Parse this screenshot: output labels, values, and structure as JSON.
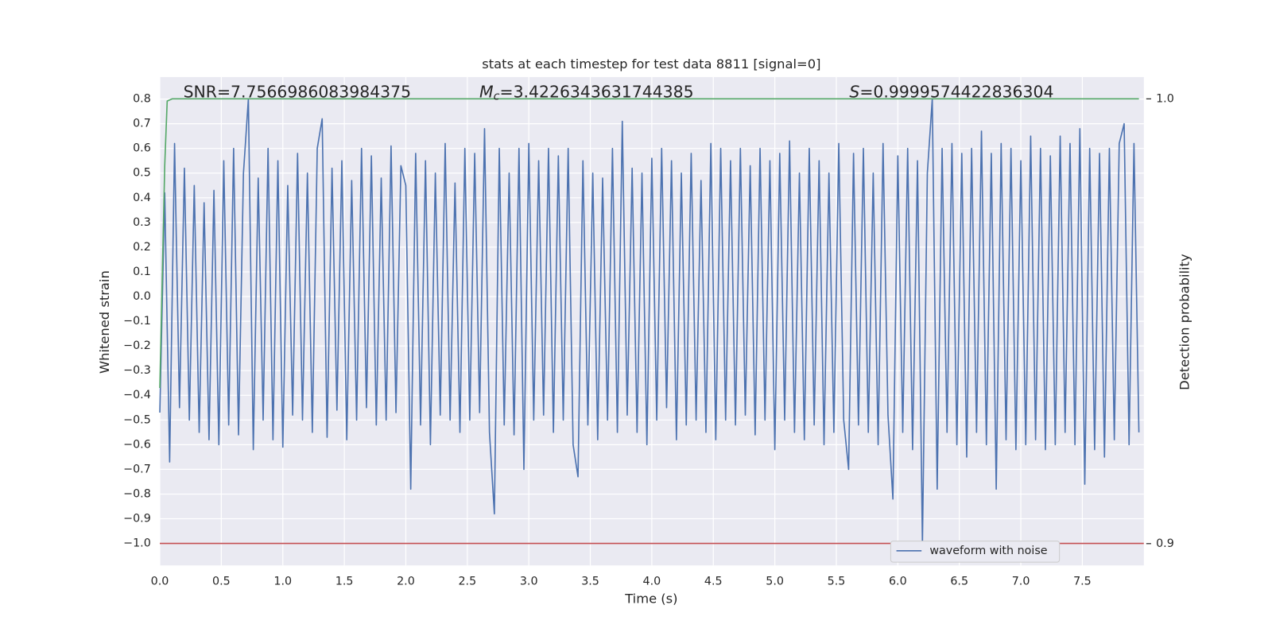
{
  "chart_data": {
    "type": "line",
    "title": "stats at each timestep for test data 8811 [signal=0]",
    "xlabel": "Time (s)",
    "ylabel": "Whitened strain",
    "y2label": "Detection probability",
    "annotations": [
      {
        "text": "SNR=7.7566986083984375"
      },
      {
        "symbol": "M",
        "subscript": "c",
        "text": "=3.4226343631744385"
      },
      {
        "symbol": "S",
        "text": "=0.9999574422836304"
      }
    ],
    "xlim": [
      0,
      8.0
    ],
    "ylim": [
      -1.089,
      0.889
    ],
    "y2lim": [
      0.8951,
      1.0049
    ],
    "xticks": [
      {
        "value": 0,
        "label": "0.0"
      },
      0.5,
      {
        "value": 1,
        "label": "1.0"
      },
      1.5,
      {
        "value": 2,
        "label": "2.0"
      },
      2.5,
      {
        "value": 3,
        "label": "3.0"
      },
      3.5,
      {
        "value": 4,
        "label": "4.0"
      },
      4.5,
      {
        "value": 5,
        "label": "5.0"
      },
      5.5,
      {
        "value": 6,
        "label": "6.0"
      },
      6.5,
      {
        "value": 7,
        "label": "7.0"
      },
      7.5
    ],
    "yticks": [
      0.8,
      0.7,
      0.6,
      0.5,
      0.4,
      0.3,
      0.2,
      0.1,
      {
        "value": 0,
        "label": "0.0"
      },
      {
        "value": -0.1,
        "label": "−0.1"
      },
      {
        "value": -0.2,
        "label": "−0.2"
      },
      {
        "value": -0.3,
        "label": "−0.3"
      },
      {
        "value": -0.4,
        "label": "−0.4"
      },
      {
        "value": -0.5,
        "label": "−0.5"
      },
      {
        "value": -0.6,
        "label": "−0.6"
      },
      {
        "value": -0.7,
        "label": "−0.7"
      },
      {
        "value": -0.8,
        "label": "−0.8"
      },
      {
        "value": -0.9,
        "label": "−0.9"
      },
      {
        "value": -1,
        "label": "−1.0"
      }
    ],
    "y2ticks": [
      {
        "value": 1,
        "label": "1.0"
      },
      0.9
    ],
    "grid": true,
    "legend": "lower right",
    "hlines": [
      {
        "y": -1,
        "color": "#c44e52"
      }
    ],
    "series": [
      {
        "name": "waveform with noise",
        "color": "#4c72b0",
        "x": [
          0,
          0.04,
          0.08,
          0.12,
          0.16,
          0.2,
          0.24,
          0.28,
          0.32,
          0.36,
          0.4,
          0.44,
          0.48,
          0.52,
          0.56,
          0.6,
          0.64,
          0.68,
          0.72,
          0.76,
          0.8,
          0.84,
          0.88,
          0.92,
          0.96,
          1,
          1.04,
          1.08,
          1.12,
          1.16,
          1.2,
          1.24,
          1.28,
          1.32,
          1.36,
          1.4,
          1.44,
          1.48,
          1.52,
          1.56,
          1.6,
          1.64,
          1.68,
          1.72,
          1.76,
          1.8,
          1.84,
          1.88,
          1.92,
          1.96,
          2,
          2.04,
          2.08,
          2.12,
          2.16,
          2.2,
          2.24,
          2.28,
          2.32,
          2.36,
          2.4,
          2.44,
          2.48,
          2.52,
          2.56,
          2.6,
          2.64,
          2.68,
          2.72,
          2.76,
          2.8,
          2.84,
          2.88,
          2.92,
          2.96,
          3,
          3.04,
          3.08,
          3.12,
          3.16,
          3.2,
          3.24,
          3.28,
          3.32,
          3.36,
          3.4,
          3.44,
          3.48,
          3.52,
          3.56,
          3.6,
          3.64,
          3.68,
          3.72,
          3.76,
          3.8,
          3.84,
          3.88,
          3.92,
          3.96,
          4,
          4.04,
          4.08,
          4.12,
          4.16,
          4.2,
          4.24,
          4.28,
          4.32,
          4.36,
          4.4,
          4.44,
          4.48,
          4.52,
          4.56,
          4.6,
          4.64,
          4.68,
          4.72,
          4.76,
          4.8,
          4.84,
          4.88,
          4.92,
          4.96,
          5,
          5.04,
          5.08,
          5.12,
          5.16,
          5.2,
          5.24,
          5.28,
          5.32,
          5.36,
          5.4,
          5.44,
          5.48,
          5.52,
          5.56,
          5.6,
          5.64,
          5.68,
          5.72,
          5.76,
          5.8,
          5.84,
          5.88,
          5.92,
          5.96,
          6,
          6.04,
          6.08,
          6.12,
          6.16,
          6.2,
          6.24,
          6.28,
          6.32,
          6.36,
          6.4,
          6.44,
          6.48,
          6.52,
          6.56,
          6.6,
          6.64,
          6.68,
          6.72,
          6.76,
          6.8,
          6.84,
          6.88,
          6.92,
          6.96,
          7,
          7.04,
          7.08,
          7.12,
          7.16,
          7.2,
          7.24,
          7.28,
          7.32,
          7.36,
          7.4,
          7.44,
          7.48,
          7.52,
          7.56,
          7.6,
          7.64,
          7.68,
          7.72,
          7.76,
          7.8,
          7.84,
          7.88,
          7.92,
          7.96
        ],
        "values": [
          -0.47,
          0.42,
          -0.67,
          0.62,
          -0.45,
          0.52,
          -0.5,
          0.45,
          -0.55,
          0.38,
          -0.58,
          0.43,
          -0.6,
          0.55,
          -0.52,
          0.6,
          -0.56,
          0.5,
          0.8,
          -0.62,
          0.48,
          -0.5,
          0.6,
          -0.58,
          0.55,
          -0.61,
          0.45,
          -0.48,
          0.58,
          -0.5,
          0.5,
          -0.55,
          0.6,
          0.72,
          -0.57,
          0.52,
          -0.46,
          0.55,
          -0.58,
          0.47,
          -0.5,
          0.6,
          -0.45,
          0.57,
          -0.52,
          0.48,
          -0.5,
          0.61,
          -0.47,
          0.53,
          0.45,
          -0.78,
          0.58,
          -0.52,
          0.55,
          -0.6,
          0.5,
          -0.48,
          0.62,
          -0.5,
          0.46,
          -0.55,
          0.6,
          -0.5,
          0.58,
          -0.47,
          0.68,
          -0.55,
          -0.88,
          0.6,
          -0.52,
          0.5,
          -0.56,
          0.6,
          -0.7,
          0.62,
          -0.5,
          0.55,
          -0.48,
          0.6,
          -0.55,
          0.57,
          -0.5,
          0.6,
          -0.6,
          -0.73,
          0.55,
          -0.52,
          0.5,
          -0.58,
          0.48,
          -0.5,
          0.6,
          -0.55,
          0.71,
          -0.48,
          0.52,
          -0.55,
          0.5,
          -0.6,
          0.56,
          -0.5,
          0.6,
          -0.45,
          0.55,
          -0.58,
          0.5,
          -0.52,
          0.58,
          -0.5,
          0.47,
          -0.55,
          0.62,
          -0.58,
          0.6,
          -0.5,
          0.55,
          -0.52,
          0.6,
          -0.48,
          0.53,
          -0.56,
          0.6,
          -0.5,
          0.55,
          -0.62,
          0.58,
          -0.5,
          0.63,
          -0.55,
          0.5,
          -0.58,
          0.6,
          -0.52,
          0.55,
          -0.6,
          0.5,
          -0.55,
          0.62,
          -0.5,
          -0.7,
          0.58,
          -0.52,
          0.6,
          -0.55,
          0.5,
          -0.6,
          0.62,
          -0.48,
          -0.82,
          0.57,
          -0.55,
          0.6,
          -0.62,
          0.55,
          -1.0,
          0.5,
          0.8,
          -0.78,
          0.6,
          -0.55,
          0.62,
          -0.6,
          0.58,
          -0.65,
          0.6,
          -0.55,
          0.67,
          -0.6,
          0.58,
          -0.78,
          0.62,
          -0.58,
          0.6,
          -0.62,
          0.55,
          -0.6,
          0.65,
          -0.58,
          0.6,
          -0.62,
          0.57,
          -0.6,
          0.65,
          -0.55,
          0.62,
          -0.6,
          0.68,
          -0.76,
          0.6,
          -0.62,
          0.58,
          -0.65,
          0.6,
          -0.58,
          0.62,
          0.7,
          -0.6,
          0.62,
          -0.55
        ]
      },
      {
        "color": "#55a868",
        "axis": "y2",
        "x": [
          0,
          0.02,
          0.04,
          0.06,
          0.1,
          7.96
        ],
        "values": [
          0.935,
          0.96,
          0.985,
          0.9995,
          1.0,
          1.0
        ]
      }
    ]
  }
}
